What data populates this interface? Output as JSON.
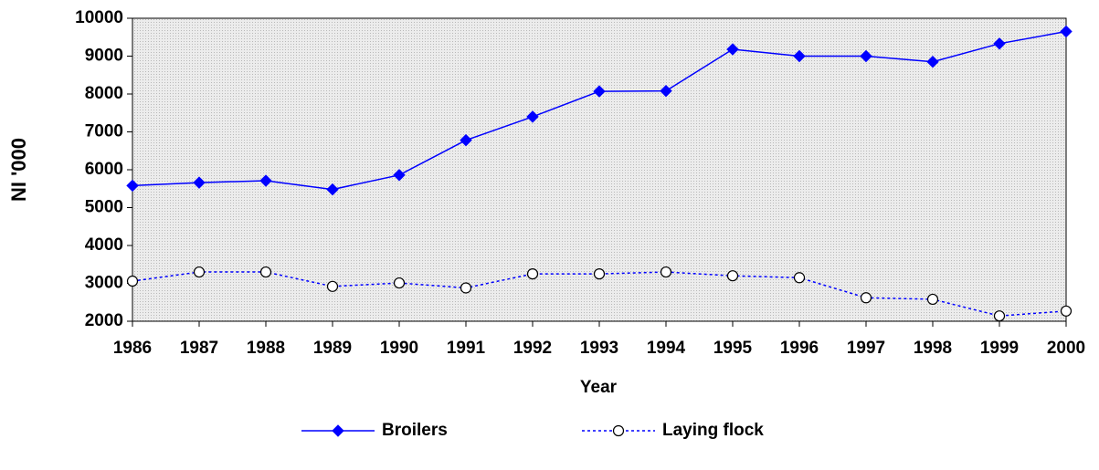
{
  "chart_data": {
    "type": "line",
    "x_label": "Year",
    "y_label": "NI '000",
    "categories": [
      "1986",
      "1987",
      "1988",
      "1989",
      "1990",
      "1991",
      "1992",
      "1993",
      "1994",
      "1995",
      "1996",
      "1997",
      "1998",
      "1999",
      "2000"
    ],
    "series": [
      {
        "name": "Broilers",
        "color": "#0000ff",
        "marker": "diamond",
        "line": "solid",
        "values": [
          5580,
          5660,
          5710,
          5480,
          5860,
          6780,
          7400,
          8070,
          8080,
          9180,
          9000,
          9000,
          8850,
          9330,
          9650
        ]
      },
      {
        "name": "Laying flock",
        "color": "#0000ff",
        "marker": "circle",
        "line": "dotted",
        "values": [
          3060,
          3300,
          3300,
          2920,
          3010,
          2880,
          3250,
          3250,
          3300,
          3200,
          3150,
          2620,
          2580,
          2140,
          2270
        ]
      }
    ],
    "ylim": [
      2000,
      10000
    ],
    "yticks": [
      2000,
      3000,
      4000,
      5000,
      6000,
      7000,
      8000,
      9000,
      10000
    ],
    "legend": "bottom"
  }
}
